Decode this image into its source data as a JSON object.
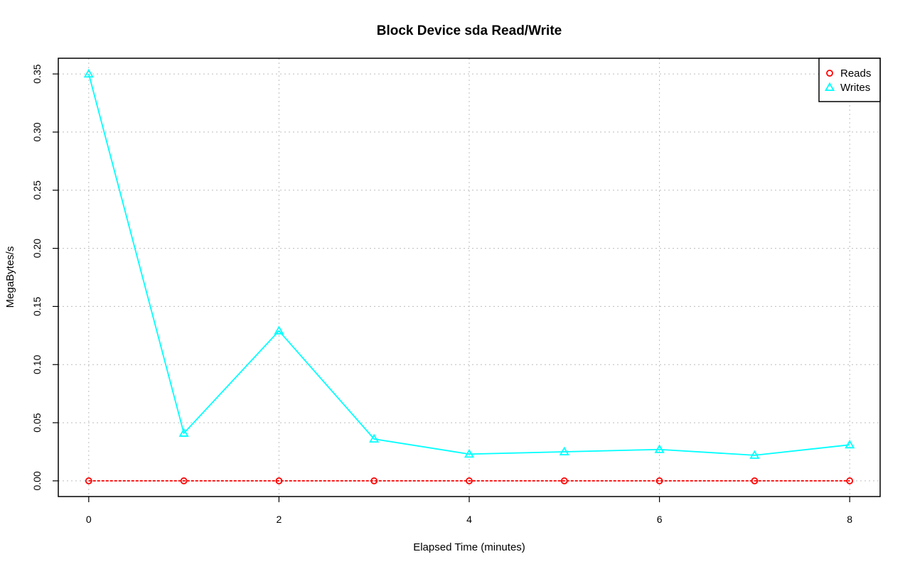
{
  "chart_data": {
    "type": "line",
    "title": "Block Device sda Read/Write",
    "xlabel": "Elapsed Time (minutes)",
    "ylabel": "MegaBytes/s",
    "x": [
      0,
      1,
      2,
      3,
      4,
      5,
      6,
      7,
      8
    ],
    "xlim": [
      -0.32,
      8.32
    ],
    "ylim": [
      -0.0135,
      0.3635
    ],
    "xticks": [
      0,
      2,
      4,
      6,
      8
    ],
    "xtick_labels": [
      "0",
      "2",
      "4",
      "6",
      "8"
    ],
    "yticks": [
      0.0,
      0.05,
      0.1,
      0.15,
      0.2,
      0.25,
      0.3,
      0.35
    ],
    "ytick_labels": [
      "0.00",
      "0.05",
      "0.10",
      "0.15",
      "0.20",
      "0.25",
      "0.30",
      "0.35"
    ],
    "grid": true,
    "legend_position": "top-right",
    "series": [
      {
        "name": "Reads",
        "color": "#ff0000",
        "marker": "circle",
        "line_style": "dashed",
        "values": [
          0,
          0,
          0,
          0,
          0,
          0,
          0,
          0,
          0
        ]
      },
      {
        "name": "Writes",
        "color": "#00ffff",
        "marker": "triangle",
        "line_style": "solid",
        "values": [
          0.35,
          0.041,
          0.129,
          0.036,
          0.023,
          0.025,
          0.027,
          0.022,
          0.031
        ]
      }
    ]
  }
}
